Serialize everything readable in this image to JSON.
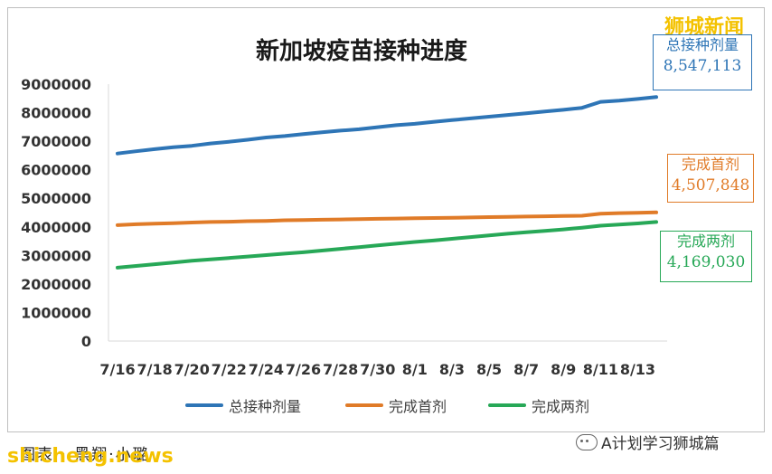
{
  "brand": "狮城新闻",
  "callouts": {
    "total": {
      "label": "总接种剂量",
      "value": "8,547,113",
      "color": "#2e75b6"
    },
    "first": {
      "label": "完成首剂",
      "value": "4,507,848",
      "color": "#e07b28"
    },
    "second": {
      "label": "完成两剂",
      "value": "4,169,030",
      "color": "#27a857"
    }
  },
  "footer": {
    "left": "图表 · 黑翔·小璐",
    "watermark": "shicheng.news",
    "right": "A计划学习狮城篇"
  },
  "chart_data": {
    "type": "line",
    "title": "新加坡疫苗接种进度",
    "x": [
      "7/16",
      "7/17",
      "7/18",
      "7/19",
      "7/20",
      "7/21",
      "7/22",
      "7/23",
      "7/24",
      "7/25",
      "7/26",
      "7/27",
      "7/28",
      "7/29",
      "7/30",
      "7/31",
      "8/1",
      "8/2",
      "8/3",
      "8/4",
      "8/5",
      "8/6",
      "8/7",
      "8/8",
      "8/9",
      "8/10",
      "8/11",
      "8/12",
      "8/13",
      "8/14"
    ],
    "x_tick_labels": [
      "7/16",
      "7/18",
      "7/20",
      "7/22",
      "7/24",
      "7/26",
      "7/28",
      "7/30",
      "8/1",
      "8/3",
      "8/5",
      "8/7",
      "8/9",
      "8/11",
      "8/13"
    ],
    "ylim": [
      0,
      9000000
    ],
    "y_ticks": [
      0,
      1000000,
      2000000,
      3000000,
      4000000,
      5000000,
      6000000,
      7000000,
      8000000,
      9000000
    ],
    "grid": false,
    "legend_position": "bottom",
    "series": [
      {
        "name": "总接种剂量",
        "color": "#2e75b6",
        "values": [
          6570000,
          6650000,
          6720000,
          6790000,
          6840000,
          6920000,
          6980000,
          7050000,
          7130000,
          7180000,
          7250000,
          7310000,
          7370000,
          7420000,
          7490000,
          7560000,
          7610000,
          7680000,
          7740000,
          7800000,
          7860000,
          7920000,
          7980000,
          8040000,
          8100000,
          8170000,
          8380000,
          8420000,
          8480000,
          8547113
        ]
      },
      {
        "name": "完成首剂",
        "color": "#e07b28",
        "values": [
          4060000,
          4090000,
          4110000,
          4130000,
          4150000,
          4170000,
          4180000,
          4200000,
          4210000,
          4230000,
          4240000,
          4250000,
          4260000,
          4270000,
          4280000,
          4290000,
          4300000,
          4310000,
          4320000,
          4330000,
          4340000,
          4350000,
          4360000,
          4370000,
          4380000,
          4390000,
          4460000,
          4480000,
          4495000,
          4507848
        ]
      },
      {
        "name": "完成两剂",
        "color": "#27a857",
        "values": [
          2570000,
          2630000,
          2690000,
          2750000,
          2810000,
          2860000,
          2910000,
          2960000,
          3010000,
          3060000,
          3110000,
          3170000,
          3230000,
          3290000,
          3350000,
          3410000,
          3470000,
          3520000,
          3580000,
          3640000,
          3700000,
          3760000,
          3810000,
          3860000,
          3910000,
          3970000,
          4040000,
          4080000,
          4120000,
          4169030
        ]
      }
    ]
  }
}
